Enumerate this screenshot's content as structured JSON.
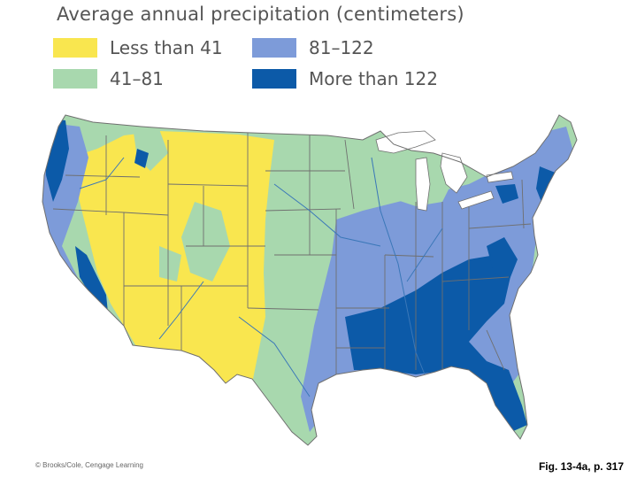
{
  "legend": {
    "title": "Average annual precipitation (centimeters)",
    "items": [
      {
        "label": "Less than 41",
        "color": "#f9e64f"
      },
      {
        "label": "41–81",
        "color": "#a8d8ae"
      },
      {
        "label": "81–122",
        "color": "#7d9bd9"
      },
      {
        "label": "More than 122",
        "color": "#0c5aa8"
      }
    ]
  },
  "colors": {
    "water": "#ffffff",
    "border": "#6f6f6f",
    "river": "#3a77b8"
  },
  "footer": {
    "copyright": "© Brooks/Cole, Cengage Learning",
    "caption": "Fig. 13-4a, p. 317"
  }
}
